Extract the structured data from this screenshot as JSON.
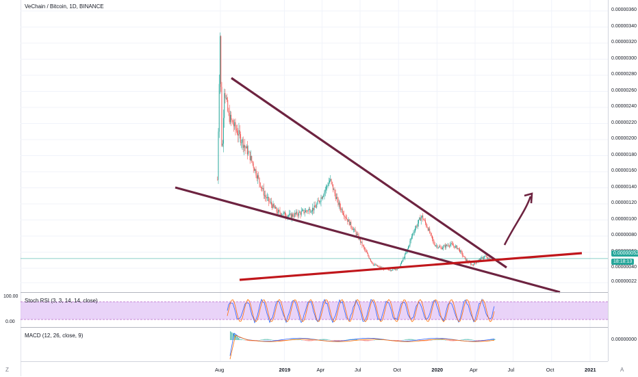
{
  "symbol": {
    "title": "VeChain / Bitcoin, 1D, BINANCE"
  },
  "price_axis": {
    "ticks": [
      "0.00000360",
      "0.00000340",
      "0.00000320",
      "0.00000300",
      "0.00000280",
      "0.00000260",
      "0.00000240",
      "0.00000220",
      "0.00000200",
      "0.00000180",
      "0.00000160",
      "0.00000140",
      "0.00000120",
      "0.00000100",
      "0.00000080",
      "0.00000060",
      "0.00000040",
      "0.00000022"
    ],
    "current_price": "0.00000052",
    "countdown": "18:18:13"
  },
  "stoch_rsi": {
    "title": "Stoch RSI (3, 3, 14, 14, close)",
    "upper": "100.00",
    "lower": "0.00"
  },
  "macd": {
    "title": "MACD (12, 26, close, 9)",
    "zero": "0.00000000"
  },
  "time_axis": [
    "Aug",
    "2019",
    "Apr",
    "Jul",
    "Oct",
    "2020",
    "Apr",
    "Jul",
    "Oct",
    "2021"
  ],
  "corners": {
    "left": "Z",
    "right": "A"
  },
  "colors": {
    "up": "#26a69a",
    "down": "#ef5350",
    "wedge": "#6d2340",
    "support": "#c0161b",
    "stoch_band": "#e1c4f6",
    "stoch_k": "#2962ff",
    "stoch_d": "#ff6d00"
  },
  "chart_data": {
    "type": "line",
    "series": [],
    "x": [
      "2018-07-25",
      "2018-07-31",
      "2018-08-05",
      "2018-08-10",
      "2018-08-20",
      "2018-09-10",
      "2018-10-10",
      "2018-11-15",
      "2018-12-15",
      "2019-01-15",
      "2019-02-15",
      "2019-03-15",
      "2019-04-01",
      "2019-04-20",
      "2019-05-10",
      "2019-06-01",
      "2019-06-25",
      "2019-07-15",
      "2019-08-01",
      "2019-08-20",
      "2019-09-10",
      "2019-10-01",
      "2019-10-20",
      "2019-11-05",
      "2019-11-25",
      "2019-12-10",
      "2019-12-25",
      "2020-01-10",
      "2020-02-01",
      "2020-02-20",
      "2020-03-10",
      "2020-03-25",
      "2020-04-10",
      "2020-04-25",
      "2020-05-05",
      "2020-05-15"
    ],
    "close": [
      1.5e-06,
      3.35e-06,
      1.7e-06,
      2.65e-06,
      2.3e-06,
      2.1e-06,
      1.8e-06,
      1.3e-06,
      1.1e-06,
      1.05e-06,
      1.1e-06,
      1.15e-06,
      1.3e-06,
      1.5e-06,
      1.2e-06,
      1e-06,
      8e-07,
      6e-07,
      4.5e-07,
      4e-07,
      3.8e-07,
      4e-07,
      6e-07,
      8.5e-07,
      1.05e-06,
      9e-07,
      7e-07,
      6.5e-07,
      7e-07,
      6.5e-07,
      5e-07,
      4.4e-07,
      5e-07,
      5.5e-07,
      5e-07,
      5.2e-07
    ],
    "ylim": [
      1e-07,
      3.62e-06
    ]
  }
}
